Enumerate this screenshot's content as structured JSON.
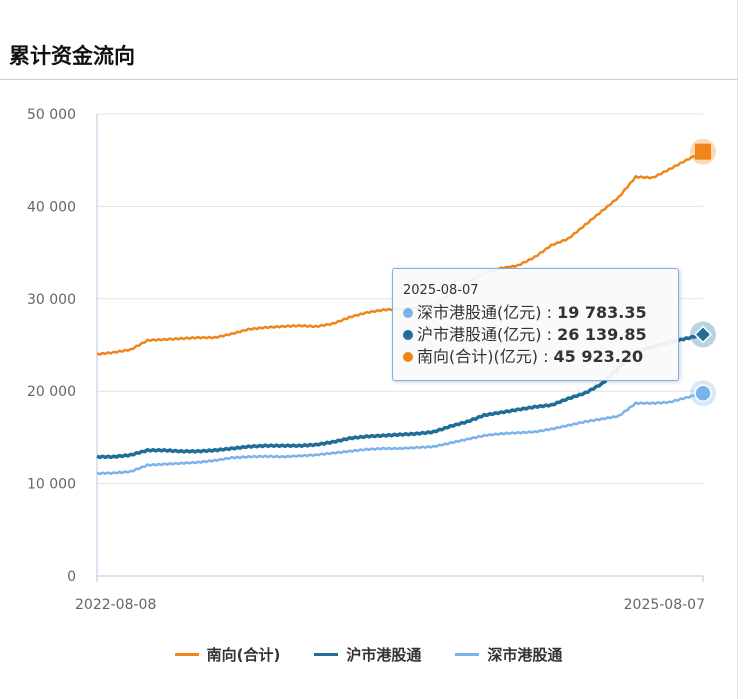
{
  "title": "累计资金流向",
  "chart_data": {
    "type": "line",
    "title": "",
    "x_start": "2022-08-08",
    "x_end": "2025-08-07",
    "x_tick_labels": [
      "2022-08-08",
      "2025-08-07"
    ],
    "x_sampling": "monthly",
    "ylim": [
      0,
      50000
    ],
    "y_ticks": [
      0,
      10000,
      20000,
      30000,
      40000,
      50000
    ],
    "y_tick_labels": [
      "0",
      "10 000",
      "20 000",
      "30 000",
      "40 000",
      "50 000"
    ],
    "grid": true,
    "legend_placement": "bottom",
    "series": [
      {
        "name": "南向(合计)",
        "color": "#f0861a",
        "marker": "square",
        "values": [
          24000,
          24200,
          24500,
          25500,
          25600,
          25700,
          25800,
          25800,
          26200,
          26700,
          26900,
          27000,
          27100,
          27000,
          27300,
          28000,
          28500,
          28800,
          28900,
          29000,
          29300,
          30500,
          31800,
          32800,
          33300,
          33600,
          34500,
          35800,
          36500,
          38000,
          39500,
          41000,
          43200,
          43100,
          44000,
          45000,
          45923.2
        ]
      },
      {
        "name": "沪市港股通",
        "color": "#1f6d99",
        "marker": "diamond",
        "values": [
          12900,
          12900,
          13100,
          13600,
          13600,
          13500,
          13500,
          13600,
          13800,
          14000,
          14100,
          14100,
          14100,
          14200,
          14500,
          14900,
          15100,
          15200,
          15300,
          15400,
          15600,
          16200,
          16700,
          17400,
          17700,
          18000,
          18300,
          18500,
          19200,
          19800,
          20800,
          22500,
          24200,
          24800,
          25300,
          25700,
          26139.85
        ]
      },
      {
        "name": "深市港股通",
        "color": "#7ab3ea",
        "marker": "circle",
        "values": [
          11100,
          11150,
          11300,
          12000,
          12100,
          12200,
          12300,
          12500,
          12800,
          12900,
          12950,
          12900,
          13000,
          13100,
          13300,
          13500,
          13700,
          13800,
          13800,
          13900,
          14000,
          14400,
          14800,
          15200,
          15400,
          15500,
          15600,
          15900,
          16300,
          16700,
          17000,
          17300,
          18700,
          18700,
          18800,
          19300,
          19783.35
        ]
      }
    ],
    "tooltip": {
      "date": "2025-08-07",
      "rows": [
        {
          "label": "深市港股通(亿元)",
          "value": "19 783.35",
          "color": "#7ab3ea"
        },
        {
          "label": "沪市港股通(亿元)",
          "value": "26 139.85",
          "color": "#1f6d99"
        },
        {
          "label": "南向(合计)(亿元)",
          "value": "45 923.20",
          "color": "#f0861a"
        }
      ]
    }
  }
}
